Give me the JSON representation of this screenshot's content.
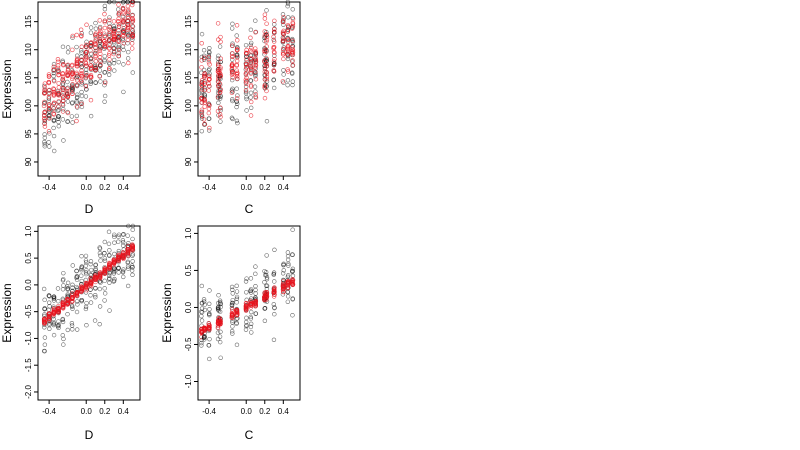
{
  "colors": {
    "observed": "#000000",
    "fitted": "#e8141e",
    "axis": "#000000",
    "background": "#ffffff"
  },
  "chart_data": [
    {
      "type": "scatter",
      "xlabel": "D",
      "ylabel": "Expression",
      "xlim": [
        -0.52,
        0.58
      ],
      "ylim": [
        87.5,
        118.5
      ],
      "x_ticks": [
        -0.4,
        0.0,
        0.2,
        0.4
      ],
      "x_tick_labels": [
        "-0.4",
        "0.0",
        "0.2",
        "0.4"
      ],
      "y_ticks": [
        90,
        95,
        100,
        105,
        110,
        115
      ],
      "y_tick_labels": [
        "90",
        "95",
        "100",
        "105",
        "110",
        "115"
      ],
      "x_levels": [
        -0.45,
        -0.4,
        -0.35,
        -0.3,
        -0.25,
        -0.2,
        -0.15,
        -0.1,
        -0.05,
        0.0,
        0.05,
        0.1,
        0.15,
        0.2,
        0.25,
        0.3,
        0.35,
        0.4,
        0.45,
        0.5
      ],
      "observed_trend": {
        "slope": 17,
        "intercept": 106.5,
        "spread": 3.8
      },
      "fitted_trend": {
        "slope": 15,
        "intercept": 107.5,
        "spread": 2.5
      },
      "points_per_level": 15
    },
    {
      "type": "scatter",
      "xlabel": "C",
      "ylabel": "Expression",
      "xlim": [
        -0.52,
        0.58
      ],
      "ylim": [
        87.5,
        118.5
      ],
      "x_ticks": [
        -0.4,
        0.0,
        0.2,
        0.4
      ],
      "x_tick_labels": [
        "-0.4",
        "0.0",
        "0.2",
        "0.4"
      ],
      "y_ticks": [
        90,
        95,
        100,
        105,
        110,
        115
      ],
      "y_tick_labels": [
        "90",
        "95",
        "100",
        "105",
        "110",
        "115"
      ],
      "x_levels": [
        -0.48,
        -0.45,
        -0.4,
        -0.3,
        -0.28,
        -0.15,
        -0.1,
        0.0,
        0.05,
        0.1,
        0.2,
        0.22,
        0.3,
        0.4,
        0.45,
        0.5
      ],
      "observed_trend": {
        "slope": 8,
        "intercept": 106.5,
        "spread": 4.2
      },
      "fitted_trend": {
        "slope": 8,
        "intercept": 107,
        "spread": 3.2
      },
      "points_per_level": 16
    },
    {
      "type": "scatter",
      "xlabel": "D",
      "ylabel": "Expression",
      "xlim": [
        -0.52,
        0.58
      ],
      "ylim": [
        -2.15,
        1.1
      ],
      "x_ticks": [
        -0.4,
        0.0,
        0.2,
        0.4
      ],
      "x_tick_labels": [
        "-0.4",
        "0.0",
        "0.2",
        "0.4"
      ],
      "y_ticks": [
        -2.0,
        -1.5,
        -1.0,
        -0.5,
        0.0,
        0.5,
        1.0
      ],
      "y_tick_labels": [
        "-2.0",
        "-1.5",
        "-1.0",
        "-0.5",
        "0.0",
        "0.5",
        "1.0"
      ],
      "x_levels": [
        -0.45,
        -0.4,
        -0.35,
        -0.3,
        -0.25,
        -0.2,
        -0.15,
        -0.1,
        -0.05,
        0.0,
        0.05,
        0.1,
        0.15,
        0.2,
        0.25,
        0.3,
        0.35,
        0.4,
        0.45,
        0.5
      ],
      "observed_trend": {
        "slope": 1.45,
        "intercept": -0.02,
        "spread": 0.28
      },
      "fitted_trend": {
        "slope": 1.45,
        "intercept": -0.02,
        "spread": 0.035
      },
      "points_per_level": 14
    },
    {
      "type": "scatter",
      "xlabel": "C",
      "ylabel": "Expression",
      "xlim": [
        -0.52,
        0.58
      ],
      "ylim": [
        -1.25,
        1.1
      ],
      "x_ticks": [
        -0.4,
        0.0,
        0.2,
        0.4
      ],
      "x_tick_labels": [
        "-0.4",
        "0.0",
        "0.2",
        "0.4"
      ],
      "y_ticks": [
        -1.0,
        -0.5,
        0.0,
        0.5,
        1.0
      ],
      "y_tick_labels": [
        "-1.0",
        "-0.5",
        "0.0",
        "0.5",
        "1.0"
      ],
      "x_levels": [
        -0.48,
        -0.45,
        -0.4,
        -0.3,
        -0.28,
        -0.15,
        -0.1,
        0.0,
        0.05,
        0.1,
        0.2,
        0.22,
        0.3,
        0.4,
        0.45,
        0.5
      ],
      "observed_trend": {
        "slope": 0.68,
        "intercept": 0.02,
        "spread": 0.22
      },
      "fitted_trend": {
        "slope": 0.68,
        "intercept": 0.0,
        "spread": 0.03
      },
      "points_per_level": 14
    }
  ]
}
